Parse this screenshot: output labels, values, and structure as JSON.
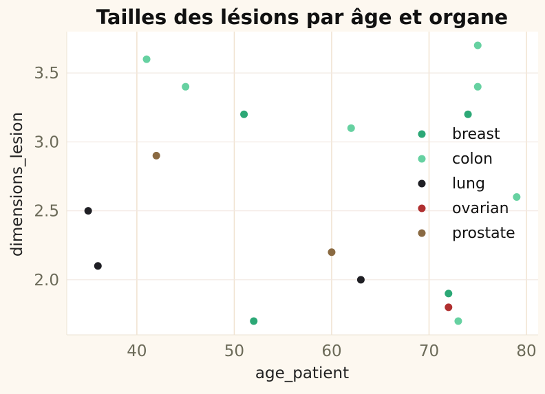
{
  "chart_data": {
    "type": "scatter",
    "title": "Tailles des lésions par âge et organe",
    "xlabel": "age_patient",
    "ylabel": "dimensions_lesion",
    "xlim": [
      32.8,
      81.2
    ],
    "ylim": [
      1.6,
      3.8
    ],
    "x_ticks": [
      40,
      50,
      60,
      70,
      80
    ],
    "y_ticks": [
      2.0,
      2.5,
      3.0,
      3.5
    ],
    "x_tick_labels": [
      "40",
      "50",
      "60",
      "70",
      "80"
    ],
    "y_tick_labels": [
      "2.0",
      "2.5",
      "3.0",
      "3.5"
    ],
    "grid": true,
    "legend_position": "right",
    "series": [
      {
        "name": "breast",
        "color": "#2ca876",
        "points": [
          [
            51,
            3.2
          ],
          [
            74,
            3.2
          ],
          [
            72,
            1.9
          ],
          [
            52,
            1.7
          ]
        ]
      },
      {
        "name": "colon",
        "color": "#66d1a1",
        "points": [
          [
            41,
            3.6
          ],
          [
            45,
            3.4
          ],
          [
            62,
            3.1
          ],
          [
            75,
            3.7
          ],
          [
            75,
            3.4
          ],
          [
            79,
            2.6
          ],
          [
            73,
            1.7
          ]
        ]
      },
      {
        "name": "lung",
        "color": "#1f1f24",
        "points": [
          [
            35,
            2.5
          ],
          [
            36,
            2.1
          ],
          [
            63,
            2.0
          ]
        ]
      },
      {
        "name": "ovarian",
        "color": "#b03030",
        "points": [
          [
            72,
            1.8
          ]
        ]
      },
      {
        "name": "prostate",
        "color": "#8a6a42",
        "points": [
          [
            42,
            2.9
          ],
          [
            60,
            2.2
          ]
        ]
      }
    ]
  }
}
